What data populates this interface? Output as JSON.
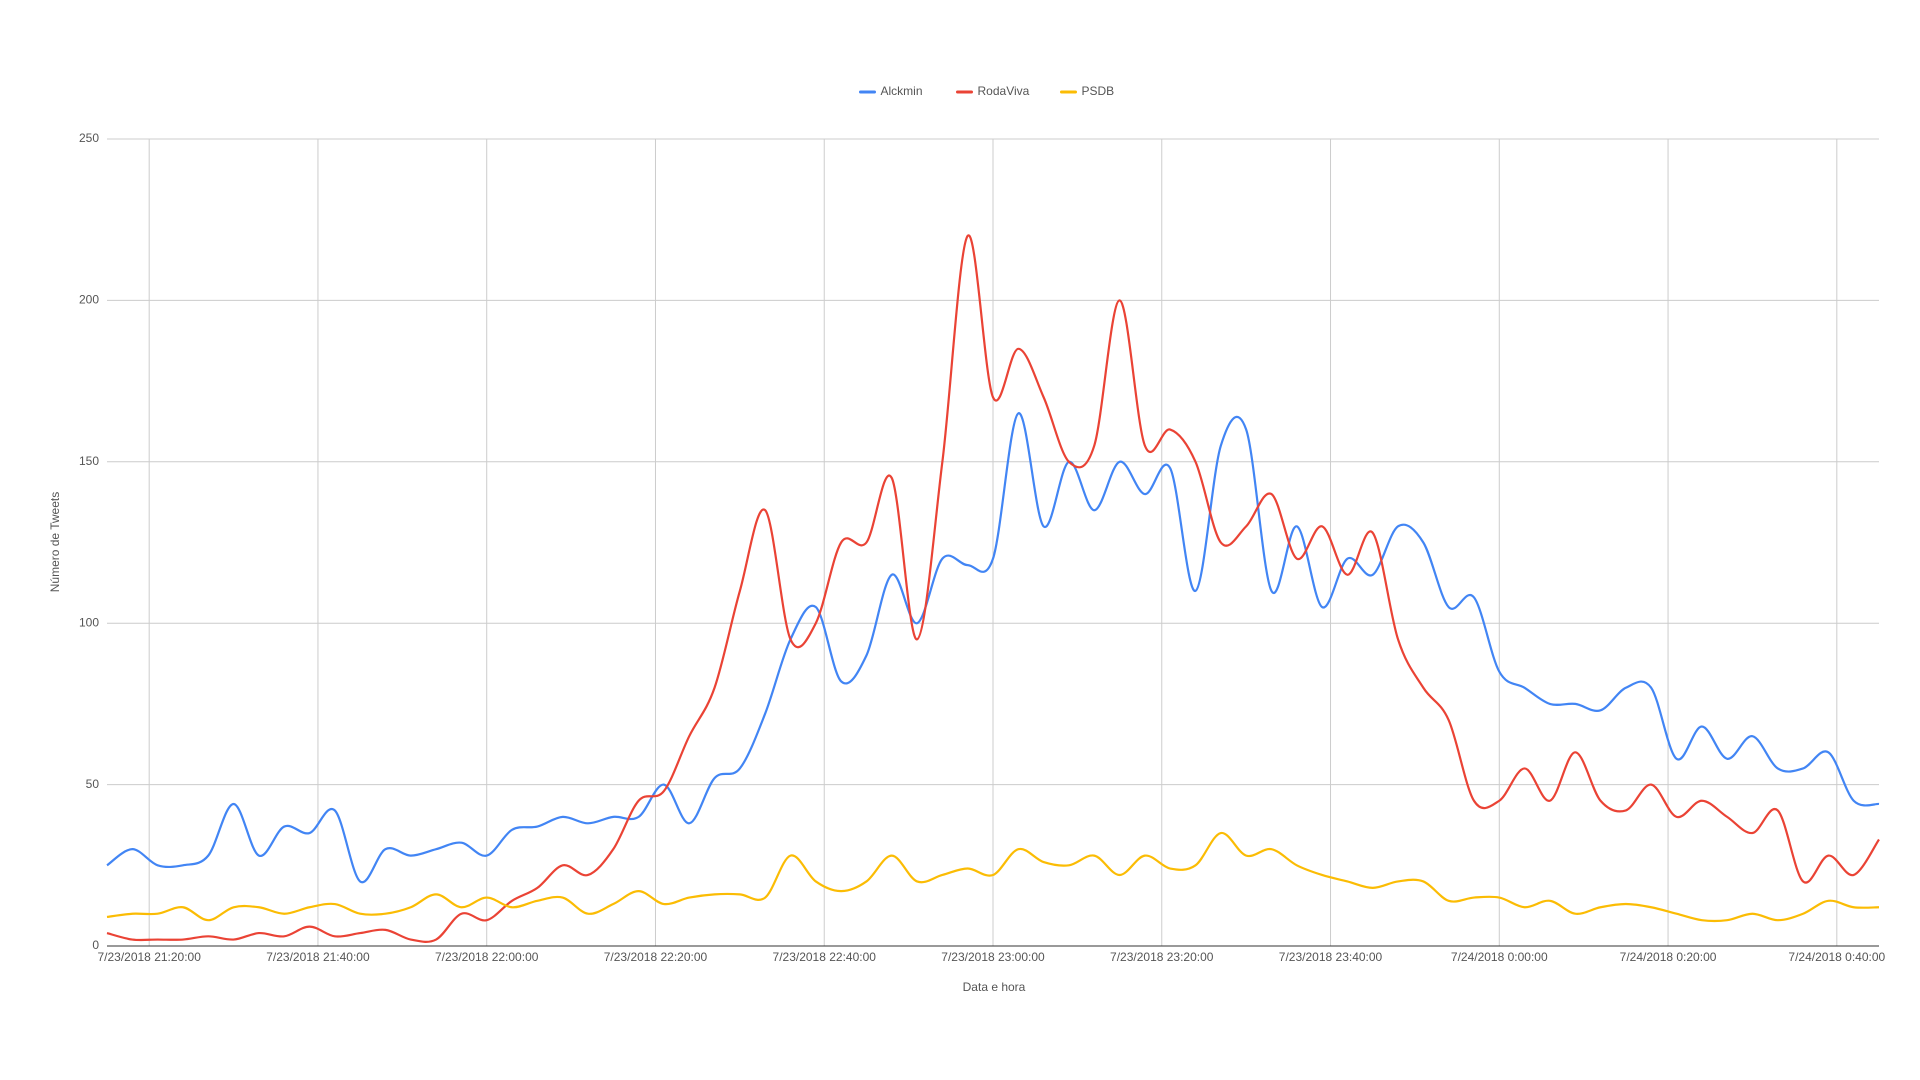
{
  "chart_data": {
    "type": "line",
    "x_label": "Data e hora",
    "y_label": "Número de Tweets",
    "x": [
      "7/23/2018 21:15:00",
      "7/23/2018 21:18:00",
      "7/23/2018 21:21:00",
      "7/23/2018 21:24:00",
      "7/23/2018 21:27:00",
      "7/23/2018 21:30:00",
      "7/23/2018 21:33:00",
      "7/23/2018 21:36:00",
      "7/23/2018 21:39:00",
      "7/23/2018 21:42:00",
      "7/23/2018 21:45:00",
      "7/23/2018 21:48:00",
      "7/23/2018 21:51:00",
      "7/23/2018 21:54:00",
      "7/23/2018 21:57:00",
      "7/23/2018 22:00:00",
      "7/23/2018 22:03:00",
      "7/23/2018 22:06:00",
      "7/23/2018 22:09:00",
      "7/23/2018 22:12:00",
      "7/23/2018 22:15:00",
      "7/23/2018 22:18:00",
      "7/23/2018 22:21:00",
      "7/23/2018 22:24:00",
      "7/23/2018 22:27:00",
      "7/23/2018 22:30:00",
      "7/23/2018 22:33:00",
      "7/23/2018 22:36:00",
      "7/23/2018 22:39:00",
      "7/23/2018 22:42:00",
      "7/23/2018 22:45:00",
      "7/23/2018 22:48:00",
      "7/23/2018 22:51:00",
      "7/23/2018 22:54:00",
      "7/23/2018 22:57:00",
      "7/23/2018 23:00:00",
      "7/23/2018 23:03:00",
      "7/23/2018 23:06:00",
      "7/23/2018 23:09:00",
      "7/23/2018 23:12:00",
      "7/23/2018 23:15:00",
      "7/23/2018 23:18:00",
      "7/23/2018 23:21:00",
      "7/23/2018 23:24:00",
      "7/23/2018 23:27:00",
      "7/23/2018 23:30:00",
      "7/23/2018 23:33:00",
      "7/23/2018 23:36:00",
      "7/23/2018 23:39:00",
      "7/23/2018 23:42:00",
      "7/23/2018 23:45:00",
      "7/23/2018 23:48:00",
      "7/23/2018 23:51:00",
      "7/23/2018 23:54:00",
      "7/23/2018 23:57:00",
      "7/24/2018 0:00:00",
      "7/24/2018 0:03:00",
      "7/24/2018 0:06:00",
      "7/24/2018 0:09:00",
      "7/24/2018 0:12:00",
      "7/24/2018 0:15:00",
      "7/24/2018 0:18:00",
      "7/24/2018 0:21:00",
      "7/24/2018 0:24:00",
      "7/24/2018 0:27:00",
      "7/24/2018 0:30:00",
      "7/24/2018 0:33:00",
      "7/24/2018 0:36:00",
      "7/24/2018 0:39:00",
      "7/24/2018 0:42:00",
      "7/24/2018 0:45:00"
    ],
    "series": [
      {
        "name": "Alckmin",
        "color": "#4285f4",
        "values": [
          25,
          30,
          25,
          25,
          28,
          44,
          28,
          37,
          35,
          42,
          20,
          30,
          28,
          30,
          32,
          28,
          36,
          37,
          40,
          38,
          40,
          40,
          50,
          38,
          52,
          55,
          72,
          95,
          105,
          82,
          90,
          115,
          100,
          120,
          118,
          120,
          165,
          130,
          150,
          135,
          150,
          140,
          148,
          110,
          155,
          160,
          110,
          130,
          105,
          120,
          115,
          130,
          125,
          105,
          108,
          85,
          80,
          75,
          75,
          73,
          80,
          80,
          58,
          68,
          58,
          65,
          55,
          55,
          60,
          45,
          44
        ]
      },
      {
        "name": "RodaViva",
        "color": "#ea4335",
        "values": [
          4,
          2,
          2,
          2,
          3,
          2,
          4,
          3,
          6,
          3,
          4,
          5,
          2,
          2,
          10,
          8,
          14,
          18,
          25,
          22,
          30,
          45,
          48,
          65,
          80,
          110,
          135,
          95,
          100,
          125,
          125,
          145,
          95,
          150,
          220,
          170,
          185,
          170,
          150,
          155,
          200,
          155,
          160,
          150,
          125,
          130,
          140,
          120,
          130,
          115,
          128,
          95,
          80,
          70,
          45,
          45,
          55,
          45,
          60,
          45,
          42,
          50,
          40,
          45,
          40,
          35,
          42,
          20,
          28,
          22,
          33
        ]
      },
      {
        "name": "PSDB",
        "color": "#fbbc04",
        "values": [
          9,
          10,
          10,
          12,
          8,
          12,
          12,
          10,
          12,
          13,
          10,
          10,
          12,
          16,
          12,
          15,
          12,
          14,
          15,
          10,
          13,
          17,
          13,
          15,
          16,
          16,
          15,
          28,
          20,
          17,
          20,
          28,
          20,
          22,
          24,
          22,
          30,
          26,
          25,
          28,
          22,
          28,
          24,
          25,
          35,
          28,
          30,
          25,
          22,
          20,
          18,
          20,
          20,
          14,
          15,
          15,
          12,
          14,
          10,
          12,
          13,
          12,
          10,
          8,
          8,
          10,
          8,
          10,
          14,
          12,
          12
        ]
      }
    ],
    "xlim": [
      "7/23/2018 21:15:00",
      "7/24/2018 0:45:00"
    ],
    "xticks": [
      "7/23/2018 21:20:00",
      "7/23/2018 21:40:00",
      "7/23/2018 22:00:00",
      "7/23/2018 22:20:00",
      "7/23/2018 22:40:00",
      "7/23/2018 23:00:00",
      "7/23/2018 23:20:00",
      "7/23/2018 23:40:00",
      "7/24/2018 0:00:00",
      "7/24/2018 0:20:00",
      "7/24/2018 0:40:00"
    ],
    "ylim": [
      0,
      250
    ],
    "yticks": [
      0,
      50,
      100,
      150,
      200,
      250
    ],
    "grid": true,
    "legend": "top"
  }
}
